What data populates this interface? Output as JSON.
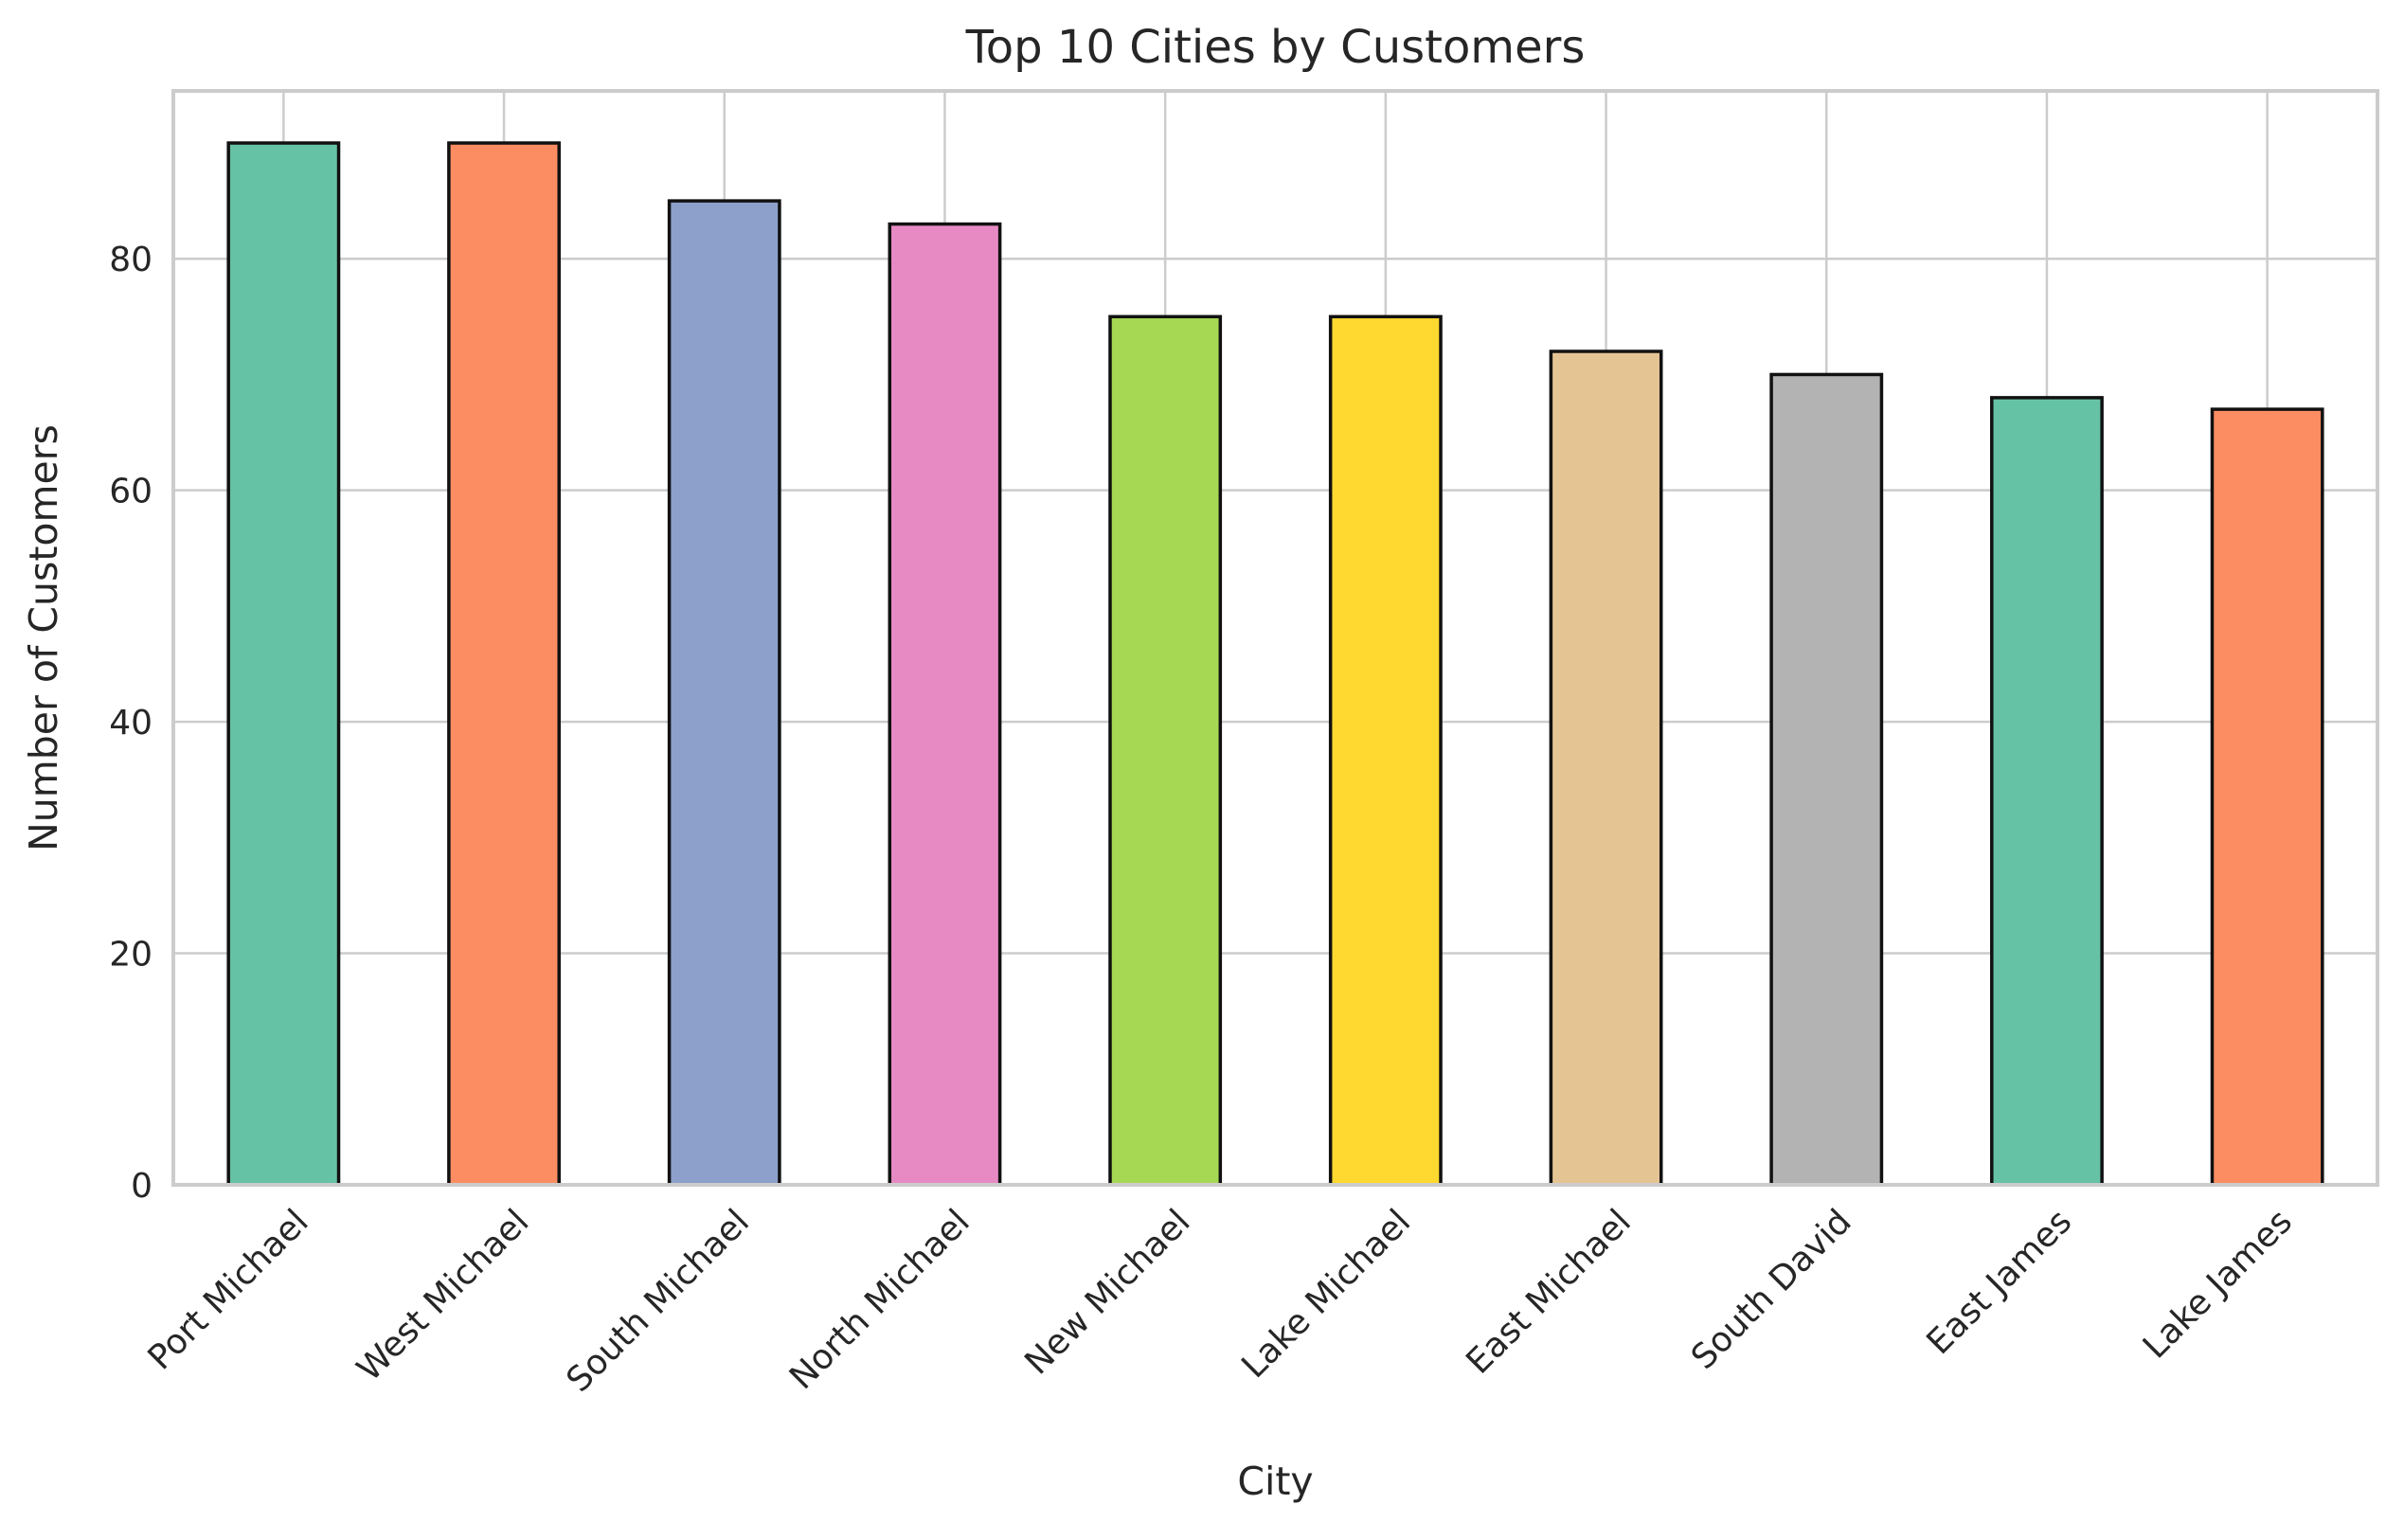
{
  "chart_data": {
    "type": "bar",
    "title": "Top 10 Cities by Customers",
    "xlabel": "City",
    "ylabel": "Number of Customers",
    "categories": [
      "Port Michael",
      "West Michael",
      "South Michael",
      "North Michael",
      "New Michael",
      "Lake Michael",
      "East Michael",
      "South David",
      "East James",
      "Lake James"
    ],
    "values": [
      90,
      90,
      85,
      83,
      75,
      75,
      72,
      70,
      68,
      67
    ],
    "colors": [
      "#66c2a5",
      "#fc8d62",
      "#8da0cb",
      "#e78ac3",
      "#a6d854",
      "#ffd92f",
      "#e5c494",
      "#b3b3b3",
      "#66c2a5",
      "#fc8d62"
    ],
    "ylim": [
      0,
      94.5
    ],
    "yticks": [
      0,
      20,
      40,
      60,
      80
    ],
    "grid": true,
    "legend": "none"
  }
}
